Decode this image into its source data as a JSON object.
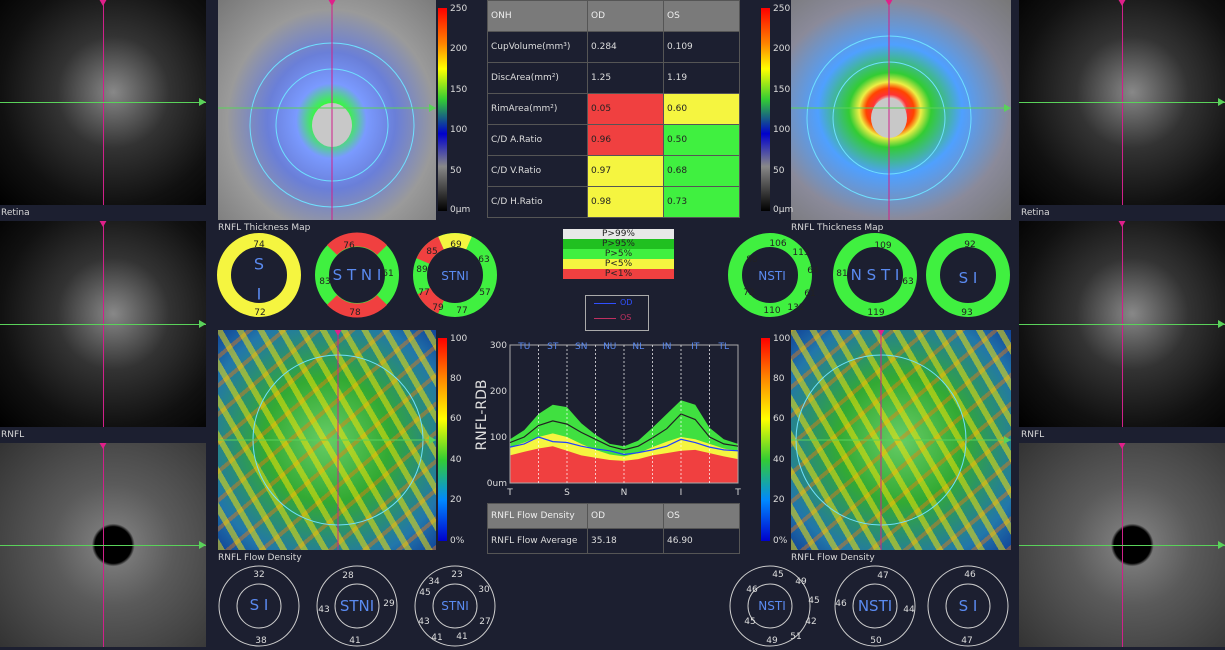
{
  "retina_label": "Retina",
  "rnfl_label": "RNFL",
  "thickness_map_label": "RNFL Thickness Map",
  "flow_density_label": "RNFL Flow Density",
  "thick_scale": [
    "250",
    "200",
    "150",
    "100",
    "50",
    "0μm"
  ],
  "flow_scale": [
    "100",
    "80",
    "60",
    "40",
    "20",
    "0%"
  ],
  "onh_table": {
    "header": [
      "ONH",
      "OD",
      "OS"
    ],
    "rows": [
      {
        "label": "CupVolume(mm³)",
        "od": "0.284",
        "os": "0.109",
        "odc": "",
        "osc": ""
      },
      {
        "label": "DiscArea(mm²)",
        "od": "1.25",
        "os": "1.19",
        "odc": "",
        "osc": ""
      },
      {
        "label": "RimArea(mm²)",
        "od": "0.05",
        "os": "0.60",
        "odc": "red",
        "osc": "yel"
      },
      {
        "label": "C/D A.Ratio",
        "od": "0.96",
        "os": "0.50",
        "odc": "red",
        "osc": "grn"
      },
      {
        "label": "C/D V.Ratio",
        "od": "0.97",
        "os": "0.68",
        "odc": "yel",
        "osc": "grn"
      },
      {
        "label": "C/D H.Ratio",
        "od": "0.98",
        "os": "0.73",
        "odc": "yel",
        "osc": "grn"
      }
    ]
  },
  "legend": [
    {
      "label": "P>99%",
      "color": "#e8e8e8"
    },
    {
      "label": "P>95%",
      "color": "#20c020"
    },
    {
      "label": "P>5%",
      "color": "#40f040"
    },
    {
      "label": "P<5%",
      "color": "#f5f540"
    },
    {
      "label": "P<1%",
      "color": "#f04040"
    }
  ],
  "eye_legend": {
    "od": "OD",
    "os": "OS"
  },
  "od_rings": {
    "r1": {
      "s": "74",
      "i": "72"
    },
    "r2": {
      "s": "76",
      "n": "61",
      "i": "78",
      "t": "83"
    },
    "r3": {
      "a": "85",
      "b": "69",
      "c": "63",
      "d": "57",
      "e": "77",
      "f": "79",
      "g": "77",
      "h": "89"
    }
  },
  "os_rings": {
    "r3": {
      "a": "106",
      "b": "113",
      "c": "64",
      "d": "61",
      "e": "132",
      "f": "110",
      "g": "72",
      "h": "88"
    },
    "r2": {
      "s": "109",
      "n": "63",
      "i": "119",
      "t": "81"
    },
    "r1": {
      "s": "92",
      "i": "93"
    }
  },
  "flow_table": {
    "header": [
      "RNFL Flow Density",
      "OD",
      "OS"
    ],
    "row": {
      "label": "RNFL Flow Average",
      "od": "35.18",
      "os": "46.90"
    }
  },
  "od_flow_rings": {
    "r1": {
      "s": "32",
      "i": "38"
    },
    "r2": {
      "s": "28",
      "n": "29",
      "i": "41",
      "t": "43"
    },
    "r3": {
      "a": "34",
      "b": "23",
      "c": "30",
      "d": "27",
      "e": "41",
      "f": "41",
      "g": "43",
      "h": "45"
    }
  },
  "os_flow_rings": {
    "r3": {
      "a": "45",
      "b": "49",
      "c": "45",
      "d": "42",
      "e": "51",
      "f": "49",
      "g": "45",
      "h": "46"
    },
    "r2": {
      "s": "47",
      "n": "44",
      "i": "50",
      "t": "46"
    },
    "r1": {
      "s": "46",
      "i": "47"
    }
  },
  "chart_data": {
    "type": "area",
    "ylabel": "RNFL-RDB",
    "ylim": [
      0,
      300
    ],
    "yticks": [
      "300",
      "200",
      "100",
      "0um"
    ],
    "top_labels": [
      "TU",
      "ST",
      "SN",
      "NU",
      "NL",
      "IN",
      "IT",
      "TL"
    ],
    "x_labels": [
      "T",
      "S",
      "N",
      "I",
      "T"
    ],
    "x": [
      0,
      1,
      2,
      3,
      4,
      5,
      6,
      7,
      8,
      9,
      10,
      11,
      12,
      13,
      14,
      15,
      16
    ],
    "band_red": [
      60,
      68,
      75,
      80,
      70,
      60,
      55,
      50,
      48,
      52,
      60,
      65,
      70,
      72,
      65,
      58,
      52
    ],
    "band_yellow": [
      78,
      88,
      100,
      108,
      100,
      85,
      72,
      62,
      58,
      65,
      78,
      90,
      100,
      95,
      85,
      75,
      70
    ],
    "band_green": [
      95,
      115,
      150,
      170,
      165,
      130,
      105,
      85,
      80,
      92,
      120,
      150,
      180,
      170,
      120,
      95,
      85
    ],
    "series": [
      {
        "name": "OD",
        "values": [
          78,
          85,
          100,
          90,
          88,
          80,
          74,
          70,
          62,
          66,
          72,
          80,
          95,
          88,
          78,
          72,
          70
        ]
      },
      {
        "name": "OS",
        "values": [
          88,
          100,
          125,
          135,
          128,
          110,
          95,
          80,
          72,
          80,
          98,
          118,
          150,
          138,
          100,
          85,
          80
        ]
      }
    ]
  }
}
